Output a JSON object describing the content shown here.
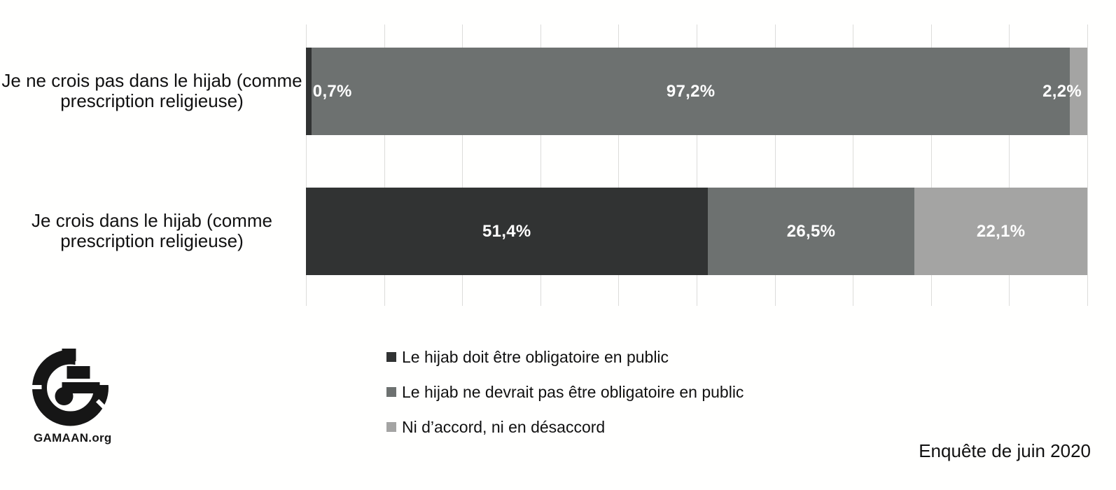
{
  "background": "#fffffe",
  "chart_data": {
    "type": "bar",
    "orientation": "horizontal",
    "stacked": true,
    "title": "",
    "xlabel": "",
    "ylabel": "",
    "xlim": [
      0,
      100
    ],
    "gridline_interval": 10,
    "grid": true,
    "legend_position": "bottom-center",
    "value_label_color": "#ffffff",
    "gridline_color": "#dcdcda",
    "categories": [
      "Je ne crois pas dans le hijab (comme prescription religieuse)",
      "Je crois dans le hijab (comme prescription religieuse)"
    ],
    "series": [
      {
        "name": "Le hijab doit être obligatoire en public",
        "color": "#313333",
        "values": [
          0.7,
          51.4
        ],
        "labels": [
          "0,7%",
          "51,4%"
        ]
      },
      {
        "name": "Le hijab ne devrait pas être obligatoire en public",
        "color": "#6d7170",
        "values": [
          97.2,
          26.5
        ],
        "labels": [
          "97,2%",
          "26,5%"
        ]
      },
      {
        "name": "Ni d’accord, ni en désaccord",
        "color": "#a4a4a3",
        "values": [
          2.2,
          22.1
        ],
        "labels": [
          "2,2%",
          "22,1%"
        ]
      }
    ]
  },
  "footer": {
    "note": "Enquête de juin 2020"
  },
  "logo": {
    "text": "GAMAAN.org"
  }
}
